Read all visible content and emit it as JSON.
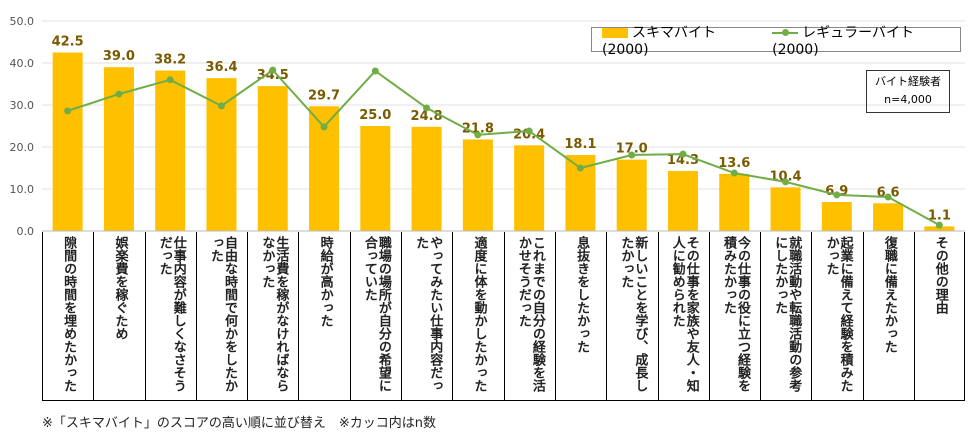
{
  "chart_data": {
    "type": "bar",
    "ylim": [
      0,
      50
    ],
    "yticks": [
      "0.0",
      "10.0",
      "20.0",
      "30.0",
      "40.0",
      "50.0"
    ],
    "categories": [
      "隙間の時間を埋めたかった",
      "娯楽費を稼ぐため",
      "仕事内容が難しくなさそうだった",
      "自由な時間で何かをしたかった",
      "生活費を稼がなければならなかった",
      "時給が高かった",
      "職場の場所が自分の希望に合っていた",
      "やってみたい仕事内容だった",
      "適度に体を動かしたかった",
      "これまでの自分の経験を活かせそうだった",
      "息抜きをしたかった",
      "新しいことを学び、成長したかった",
      "その仕事を家族や友人・知人に勧められた",
      "今の仕事の役に立つ経験を積みたかった",
      "就職活動や転職活動の参考にしたかった",
      "起業に備えて経験を積みたかった",
      "復職に備えたかった",
      "その他の理由"
    ],
    "series": [
      {
        "name": "スキマバイト(2000)",
        "type": "bar",
        "color": "#FFC000",
        "values": [
          42.5,
          39.0,
          38.2,
          36.4,
          34.5,
          29.7,
          25.0,
          24.8,
          21.8,
          20.4,
          18.1,
          17.0,
          14.3,
          13.6,
          10.4,
          6.9,
          6.6,
          1.1
        ],
        "labels": [
          "42.5",
          "39.0",
          "38.2",
          "36.4",
          "34.5",
          "29.7",
          "25.0",
          "24.8",
          "21.8",
          "20.4",
          "18.1",
          "17.0",
          "14.3",
          "13.6",
          "10.4",
          "6.9",
          "6.6",
          "1.1"
        ]
      },
      {
        "name": "レギュラーバイト(2000)",
        "type": "line",
        "color": "#70AD47",
        "values": [
          28.6,
          32.6,
          36.0,
          29.8,
          38.3,
          24.8,
          38.1,
          29.3,
          22.9,
          23.8,
          15.0,
          18.1,
          18.3,
          13.8,
          11.7,
          8.6,
          8.1,
          1.4
        ]
      }
    ],
    "legend": "top-right",
    "annotation": {
      "line1": "バイト経験者",
      "line2": "n=4,000"
    },
    "footnote": "※「スキマバイト」のスコアの高い順に並び替え　※カッコ内はn数"
  }
}
